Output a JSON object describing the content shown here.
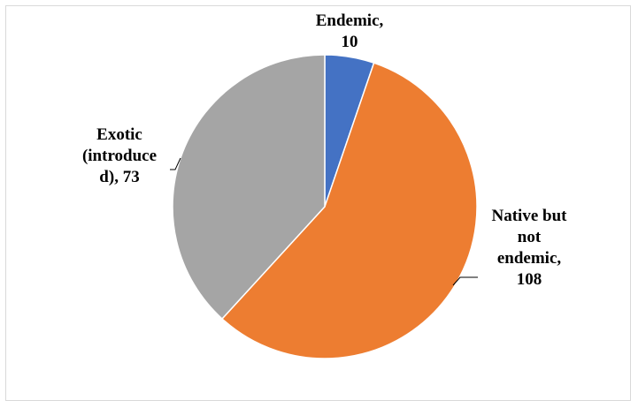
{
  "chart_data": {
    "type": "pie",
    "title": "",
    "slices": [
      {
        "label": "Endemic",
        "value": 10,
        "color": "#4472c4"
      },
      {
        "label": "Native but not endemic",
        "value": 108,
        "color": "#ed7d31"
      },
      {
        "label": "Exotic (introduced)",
        "value": 73,
        "color": "#a5a5a5"
      }
    ],
    "start_angle_deg": 0,
    "direction": "clockwise"
  },
  "labels": {
    "endemic": [
      "Endemic,",
      "10"
    ],
    "native": [
      "Native but",
      "not",
      "endemic,",
      "108"
    ],
    "exotic": [
      "Exotic",
      "(introduce",
      "d), 73"
    ]
  }
}
